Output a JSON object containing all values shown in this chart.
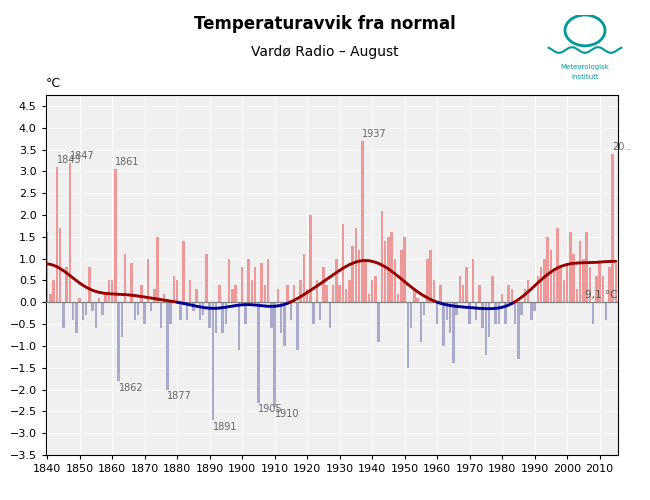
{
  "title": "Temperaturavvik fra normal",
  "subtitle": "Vardø Radio – August",
  "ylabel": "°C",
  "normal_label": "9,1 °C",
  "xlim": [
    1839.5,
    2015.5
  ],
  "ylim": [
    -3.5,
    4.75
  ],
  "yticks": [
    -3.5,
    -3.0,
    -2.5,
    -2.0,
    -1.5,
    -1.0,
    -0.5,
    0.0,
    0.5,
    1.0,
    1.5,
    2.0,
    2.5,
    3.0,
    3.5,
    4.0,
    4.5
  ],
  "xticks": [
    1840,
    1850,
    1860,
    1870,
    1880,
    1890,
    1900,
    1910,
    1920,
    1930,
    1940,
    1950,
    1960,
    1970,
    1980,
    1990,
    2000,
    2010
  ],
  "bar_color_pos": "#EE9999",
  "bar_color_neg": "#AAAACC",
  "trend_color_pos": "#990000",
  "trend_color_neg": "#000099",
  "background_color": "#F0F0F0",
  "grid_color": "#FFFFFF",
  "title_fontsize": 12,
  "subtitle_fontsize": 10,
  "sigma": 7,
  "annotations_pos": [
    {
      "year": 1843,
      "label": "1843",
      "val": 3.1
    },
    {
      "year": 1847,
      "label": "1847",
      "val": 3.2
    },
    {
      "year": 1861,
      "label": "1861",
      "val": 3.05
    },
    {
      "year": 1937,
      "label": "1937",
      "val": 3.7
    },
    {
      "year": 2014,
      "label": "20..",
      "val": 3.4
    }
  ],
  "annotations_neg": [
    {
      "year": 1862,
      "label": "1862",
      "val": -1.8
    },
    {
      "year": 1877,
      "label": "1877",
      "val": -2.0
    },
    {
      "year": 1891,
      "label": "1891",
      "val": -2.7
    },
    {
      "year": 1905,
      "label": "1905",
      "val": -2.3
    },
    {
      "year": 1910,
      "label": "1910",
      "val": -2.4
    }
  ],
  "years": [
    1840,
    1841,
    1842,
    1843,
    1844,
    1845,
    1846,
    1847,
    1848,
    1849,
    1850,
    1851,
    1852,
    1853,
    1854,
    1855,
    1856,
    1857,
    1858,
    1859,
    1860,
    1861,
    1862,
    1863,
    1864,
    1865,
    1866,
    1867,
    1868,
    1869,
    1870,
    1871,
    1872,
    1873,
    1874,
    1875,
    1876,
    1877,
    1878,
    1879,
    1880,
    1881,
    1882,
    1883,
    1884,
    1885,
    1886,
    1887,
    1888,
    1889,
    1890,
    1891,
    1892,
    1893,
    1894,
    1895,
    1896,
    1897,
    1898,
    1899,
    1900,
    1901,
    1902,
    1903,
    1904,
    1905,
    1906,
    1907,
    1908,
    1909,
    1910,
    1911,
    1912,
    1913,
    1914,
    1915,
    1916,
    1917,
    1918,
    1919,
    1920,
    1921,
    1922,
    1923,
    1924,
    1925,
    1926,
    1927,
    1928,
    1929,
    1930,
    1931,
    1932,
    1933,
    1934,
    1935,
    1936,
    1937,
    1938,
    1939,
    1940,
    1941,
    1942,
    1943,
    1944,
    1945,
    1946,
    1947,
    1948,
    1949,
    1950,
    1951,
    1952,
    1953,
    1954,
    1955,
    1956,
    1957,
    1958,
    1959,
    1960,
    1961,
    1962,
    1963,
    1964,
    1965,
    1966,
    1967,
    1968,
    1969,
    1970,
    1971,
    1972,
    1973,
    1974,
    1975,
    1976,
    1977,
    1978,
    1979,
    1980,
    1981,
    1982,
    1983,
    1984,
    1985,
    1986,
    1987,
    1988,
    1989,
    1990,
    1991,
    1992,
    1993,
    1994,
    1995,
    1996,
    1997,
    1998,
    1999,
    2000,
    2001,
    2002,
    2003,
    2004,
    2005,
    2006,
    2007,
    2008,
    2009,
    2010,
    2011,
    2012,
    2013,
    2014,
    2015
  ],
  "values": [
    1.6,
    0.2,
    0.5,
    3.1,
    1.7,
    -0.6,
    0.8,
    3.2,
    -0.4,
    -0.7,
    0.1,
    -0.4,
    -0.3,
    0.8,
    -0.2,
    -0.6,
    0.1,
    -0.3,
    0.2,
    0.5,
    0.5,
    3.05,
    -1.8,
    -0.8,
    1.1,
    0.0,
    0.9,
    -0.4,
    -0.3,
    0.4,
    -0.5,
    1.0,
    -0.2,
    0.3,
    1.5,
    -0.6,
    0.2,
    -2.0,
    -0.5,
    0.6,
    0.5,
    -0.4,
    1.4,
    -0.4,
    0.5,
    -0.2,
    0.3,
    -0.4,
    -0.3,
    1.1,
    -0.6,
    -2.7,
    -0.7,
    0.4,
    -0.7,
    -0.5,
    1.0,
    0.3,
    0.4,
    -1.1,
    0.8,
    -0.5,
    1.0,
    0.5,
    0.8,
    -2.3,
    0.9,
    0.4,
    1.0,
    -0.6,
    -2.4,
    0.3,
    -0.7,
    -1.0,
    0.4,
    -0.4,
    0.4,
    -1.1,
    0.5,
    1.1,
    0.3,
    2.0,
    -0.5,
    0.5,
    -0.4,
    0.8,
    0.4,
    -0.6,
    0.4,
    1.0,
    0.4,
    1.8,
    0.3,
    0.5,
    1.3,
    1.7,
    1.2,
    3.7,
    1.0,
    0.2,
    0.5,
    0.6,
    -0.9,
    2.1,
    1.4,
    1.5,
    1.6,
    1.0,
    0.2,
    1.2,
    1.5,
    -1.5,
    -0.6,
    0.3,
    0.1,
    -0.9,
    -0.3,
    1.0,
    1.2,
    0.5,
    -0.5,
    0.4,
    -1.0,
    -0.4,
    -0.7,
    -1.4,
    -0.3,
    0.6,
    0.4,
    0.8,
    -0.5,
    1.0,
    -0.4,
    0.4,
    -0.6,
    -1.2,
    -0.8,
    0.6,
    -0.5,
    -0.5,
    0.2,
    -0.5,
    0.4,
    0.3,
    -0.5,
    -1.3,
    -0.3,
    0.3,
    0.5,
    -0.4,
    -0.2,
    0.6,
    0.8,
    1.0,
    1.5,
    1.2,
    0.7,
    1.7,
    0.8,
    0.5,
    0.9,
    1.6,
    1.1,
    0.3,
    1.4,
    1.0,
    1.6,
    0.8,
    -0.5,
    0.6,
    0.9,
    0.6,
    -0.4,
    0.8,
    3.4,
    0.9
  ]
}
